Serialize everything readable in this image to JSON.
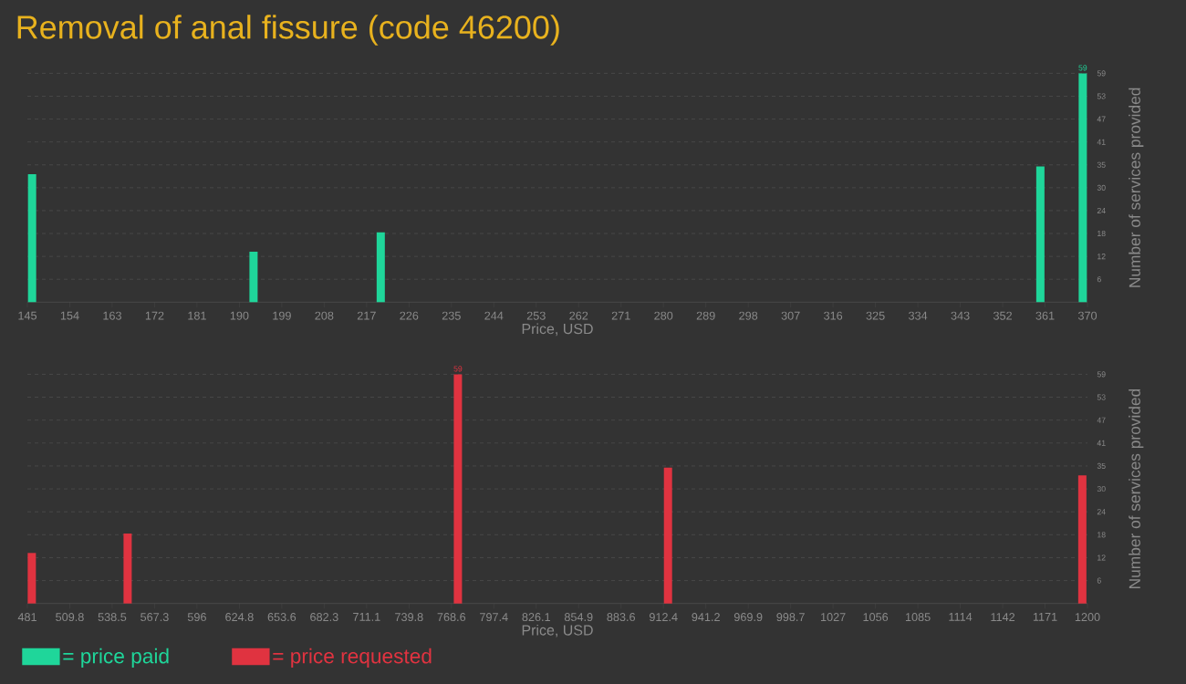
{
  "chart_data": [
    {
      "type": "bar",
      "title": "Removal of anal fissure (code 46200)",
      "xlabel": "Price, USD",
      "ylabel": "Number of services provided",
      "x": [
        146,
        193,
        220,
        360,
        369
      ],
      "series": [
        {
          "name": "= price paid",
          "color": "#1fd69a",
          "values": [
            33,
            13,
            18,
            35,
            59
          ],
          "value_labels": [
            null,
            null,
            null,
            null,
            "59"
          ]
        }
      ],
      "xlim": [
        145,
        370
      ],
      "xticks": [
        145,
        154,
        163,
        172,
        181,
        190,
        199,
        208,
        217,
        226,
        235,
        244,
        253,
        262,
        271,
        280,
        289,
        298,
        307,
        316,
        325,
        334,
        343,
        352,
        361,
        370
      ],
      "ylim": [
        0,
        59
      ],
      "yticks": [
        {
          "value": 5.9,
          "label": "6"
        },
        {
          "value": 11.8,
          "label": "12"
        },
        {
          "value": 17.7,
          "label": "18"
        },
        {
          "value": 23.6,
          "label": "24"
        },
        {
          "value": 29.5,
          "label": "30"
        },
        {
          "value": 35.4,
          "label": "35"
        },
        {
          "value": 41.3,
          "label": "41"
        },
        {
          "value": 47.2,
          "label": "47"
        },
        {
          "value": 53.1,
          "label": "53"
        },
        59
      ],
      "grid": "y",
      "legend": "bottom"
    },
    {
      "type": "bar",
      "xlabel": "Price, USD",
      "ylabel": "Number of services provided",
      "x": [
        484,
        549,
        773,
        915.5,
        1196.5
      ],
      "series": [
        {
          "name": "= price requested",
          "color": "#e03340",
          "values": [
            13,
            18,
            59,
            35,
            33
          ],
          "value_labels": [
            null,
            null,
            "59",
            null,
            null
          ]
        }
      ],
      "xlim": [
        481,
        1200
      ],
      "xticks": [
        481,
        {
          "value": 509.76,
          "label": "509.8"
        },
        {
          "value": 538.52,
          "label": "538.5"
        },
        {
          "value": 567.28,
          "label": "567.3"
        },
        {
          "value": 596.04,
          "label": "596"
        },
        624.8,
        {
          "value": 653.56,
          "label": "653.6"
        },
        {
          "value": 682.32,
          "label": "682.3"
        },
        {
          "value": 711.08,
          "label": "711.1"
        },
        {
          "value": 739.84,
          "label": "739.8"
        },
        768.6,
        {
          "value": 797.36,
          "label": "797.4"
        },
        {
          "value": 826.12,
          "label": "826.1"
        },
        {
          "value": 854.88,
          "label": "854.9"
        },
        {
          "value": 883.64,
          "label": "883.6"
        },
        912.4,
        {
          "value": 941.16,
          "label": "941.2"
        },
        {
          "value": 969.92,
          "label": "969.9"
        },
        {
          "value": 998.68,
          "label": "998.7"
        },
        {
          "value": 1027.44,
          "label": "1027"
        },
        {
          "value": 1056.2,
          "label": "1056"
        },
        {
          "value": 1084.96,
          "label": "1085"
        },
        {
          "value": 1113.72,
          "label": "1114"
        },
        {
          "value": 1142.48,
          "label": "1142"
        },
        {
          "value": 1171.24,
          "label": "1171"
        },
        1200
      ],
      "ylim": [
        0,
        59
      ],
      "yticks": [
        {
          "value": 5.9,
          "label": "6"
        },
        {
          "value": 11.8,
          "label": "12"
        },
        {
          "value": 17.7,
          "label": "18"
        },
        {
          "value": 23.6,
          "label": "24"
        },
        {
          "value": 29.5,
          "label": "30"
        },
        {
          "value": 35.4,
          "label": "35"
        },
        {
          "value": 41.3,
          "label": "41"
        },
        {
          "value": 47.2,
          "label": "47"
        },
        {
          "value": 53.1,
          "label": "53"
        },
        59
      ],
      "grid": "y",
      "legend": "bottom"
    }
  ]
}
